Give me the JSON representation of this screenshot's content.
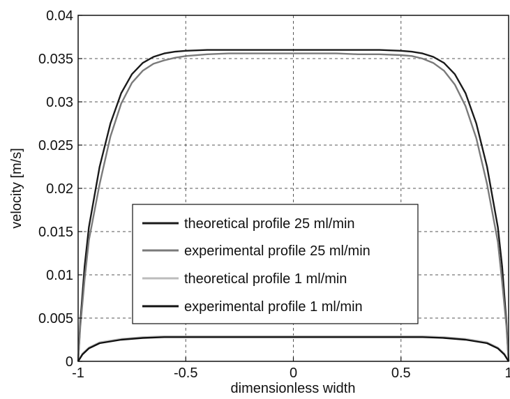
{
  "chart_data": {
    "type": "line",
    "title": "",
    "xlabel": "dimensionless width",
    "ylabel": "velocity [m/s]",
    "xlim": [
      -1,
      1
    ],
    "ylim": [
      0,
      0.04
    ],
    "grid": true,
    "x_ticks": [
      "-1",
      "-0.5",
      "0",
      "0.5",
      "1"
    ],
    "y_ticks": [
      "0",
      "0.005",
      "0.01",
      "0.015",
      "0.02",
      "0.025",
      "0.03",
      "0.035",
      "0.04"
    ],
    "legend_position": "center-bottom",
    "series": [
      {
        "name": "theoretical profile 25 ml/min",
        "color": "#1a1a1a",
        "x": [
          -1,
          -0.99,
          -0.97,
          -0.95,
          -0.9,
          -0.85,
          -0.8,
          -0.75,
          -0.7,
          -0.65,
          -0.6,
          -0.55,
          -0.5,
          -0.4,
          -0.3,
          -0.2,
          -0.1,
          0,
          0.1,
          0.2,
          0.3,
          0.4,
          0.5,
          0.55,
          0.6,
          0.65,
          0.7,
          0.75,
          0.8,
          0.85,
          0.9,
          0.95,
          0.97,
          0.99,
          1
        ],
        "y": [
          0,
          0.0045,
          0.011,
          0.0155,
          0.0225,
          0.0275,
          0.031,
          0.0332,
          0.0345,
          0.0352,
          0.0356,
          0.0358,
          0.0359,
          0.036,
          0.036,
          0.036,
          0.036,
          0.036,
          0.036,
          0.036,
          0.036,
          0.036,
          0.0359,
          0.0358,
          0.0356,
          0.0352,
          0.0345,
          0.0332,
          0.031,
          0.0275,
          0.0225,
          0.0155,
          0.011,
          0.0045,
          0
        ]
      },
      {
        "name": "experimental profile 25 ml/min",
        "color": "#7a7a7a",
        "x": [
          -1,
          -0.99,
          -0.97,
          -0.95,
          -0.9,
          -0.85,
          -0.8,
          -0.75,
          -0.7,
          -0.65,
          -0.6,
          -0.55,
          -0.5,
          -0.4,
          -0.3,
          -0.2,
          -0.1,
          0,
          0.1,
          0.2,
          0.3,
          0.4,
          0.5,
          0.55,
          0.6,
          0.65,
          0.7,
          0.75,
          0.8,
          0.85,
          0.9,
          0.95,
          0.97,
          0.99,
          1
        ],
        "y": [
          0,
          0.004,
          0.0095,
          0.014,
          0.0205,
          0.026,
          0.0298,
          0.0322,
          0.0336,
          0.0344,
          0.0348,
          0.0351,
          0.0353,
          0.0355,
          0.0356,
          0.0356,
          0.0356,
          0.0356,
          0.0356,
          0.0356,
          0.0355,
          0.0355,
          0.0354,
          0.0353,
          0.035,
          0.0345,
          0.0336,
          0.032,
          0.0295,
          0.0258,
          0.0205,
          0.0138,
          0.0092,
          0.004,
          0
        ]
      },
      {
        "name": "theoretical profile 1 ml/min",
        "color": "#bcbcbc",
        "x": [
          -1,
          -0.98,
          -0.95,
          -0.9,
          -0.8,
          -0.7,
          -0.6,
          -0.5,
          -0.3,
          0,
          0.3,
          0.5,
          0.6,
          0.7,
          0.8,
          0.9,
          0.95,
          0.98,
          1
        ],
        "y": [
          0,
          0.0009,
          0.0016,
          0.0022,
          0.0026,
          0.0028,
          0.0029,
          0.0029,
          0.0029,
          0.0029,
          0.0029,
          0.0029,
          0.0029,
          0.0028,
          0.0026,
          0.0022,
          0.0016,
          0.0009,
          0
        ]
      },
      {
        "name": "experimental profile 1 ml/min",
        "color": "#111111",
        "x": [
          -1,
          -0.98,
          -0.95,
          -0.9,
          -0.8,
          -0.7,
          -0.6,
          -0.5,
          -0.3,
          0,
          0.3,
          0.5,
          0.6,
          0.7,
          0.8,
          0.9,
          0.95,
          0.98,
          1
        ],
        "y": [
          0,
          0.0008,
          0.0015,
          0.0021,
          0.0025,
          0.0027,
          0.0028,
          0.0028,
          0.0028,
          0.0028,
          0.0028,
          0.0028,
          0.0028,
          0.0027,
          0.0025,
          0.0021,
          0.0015,
          0.0008,
          0
        ]
      }
    ]
  }
}
